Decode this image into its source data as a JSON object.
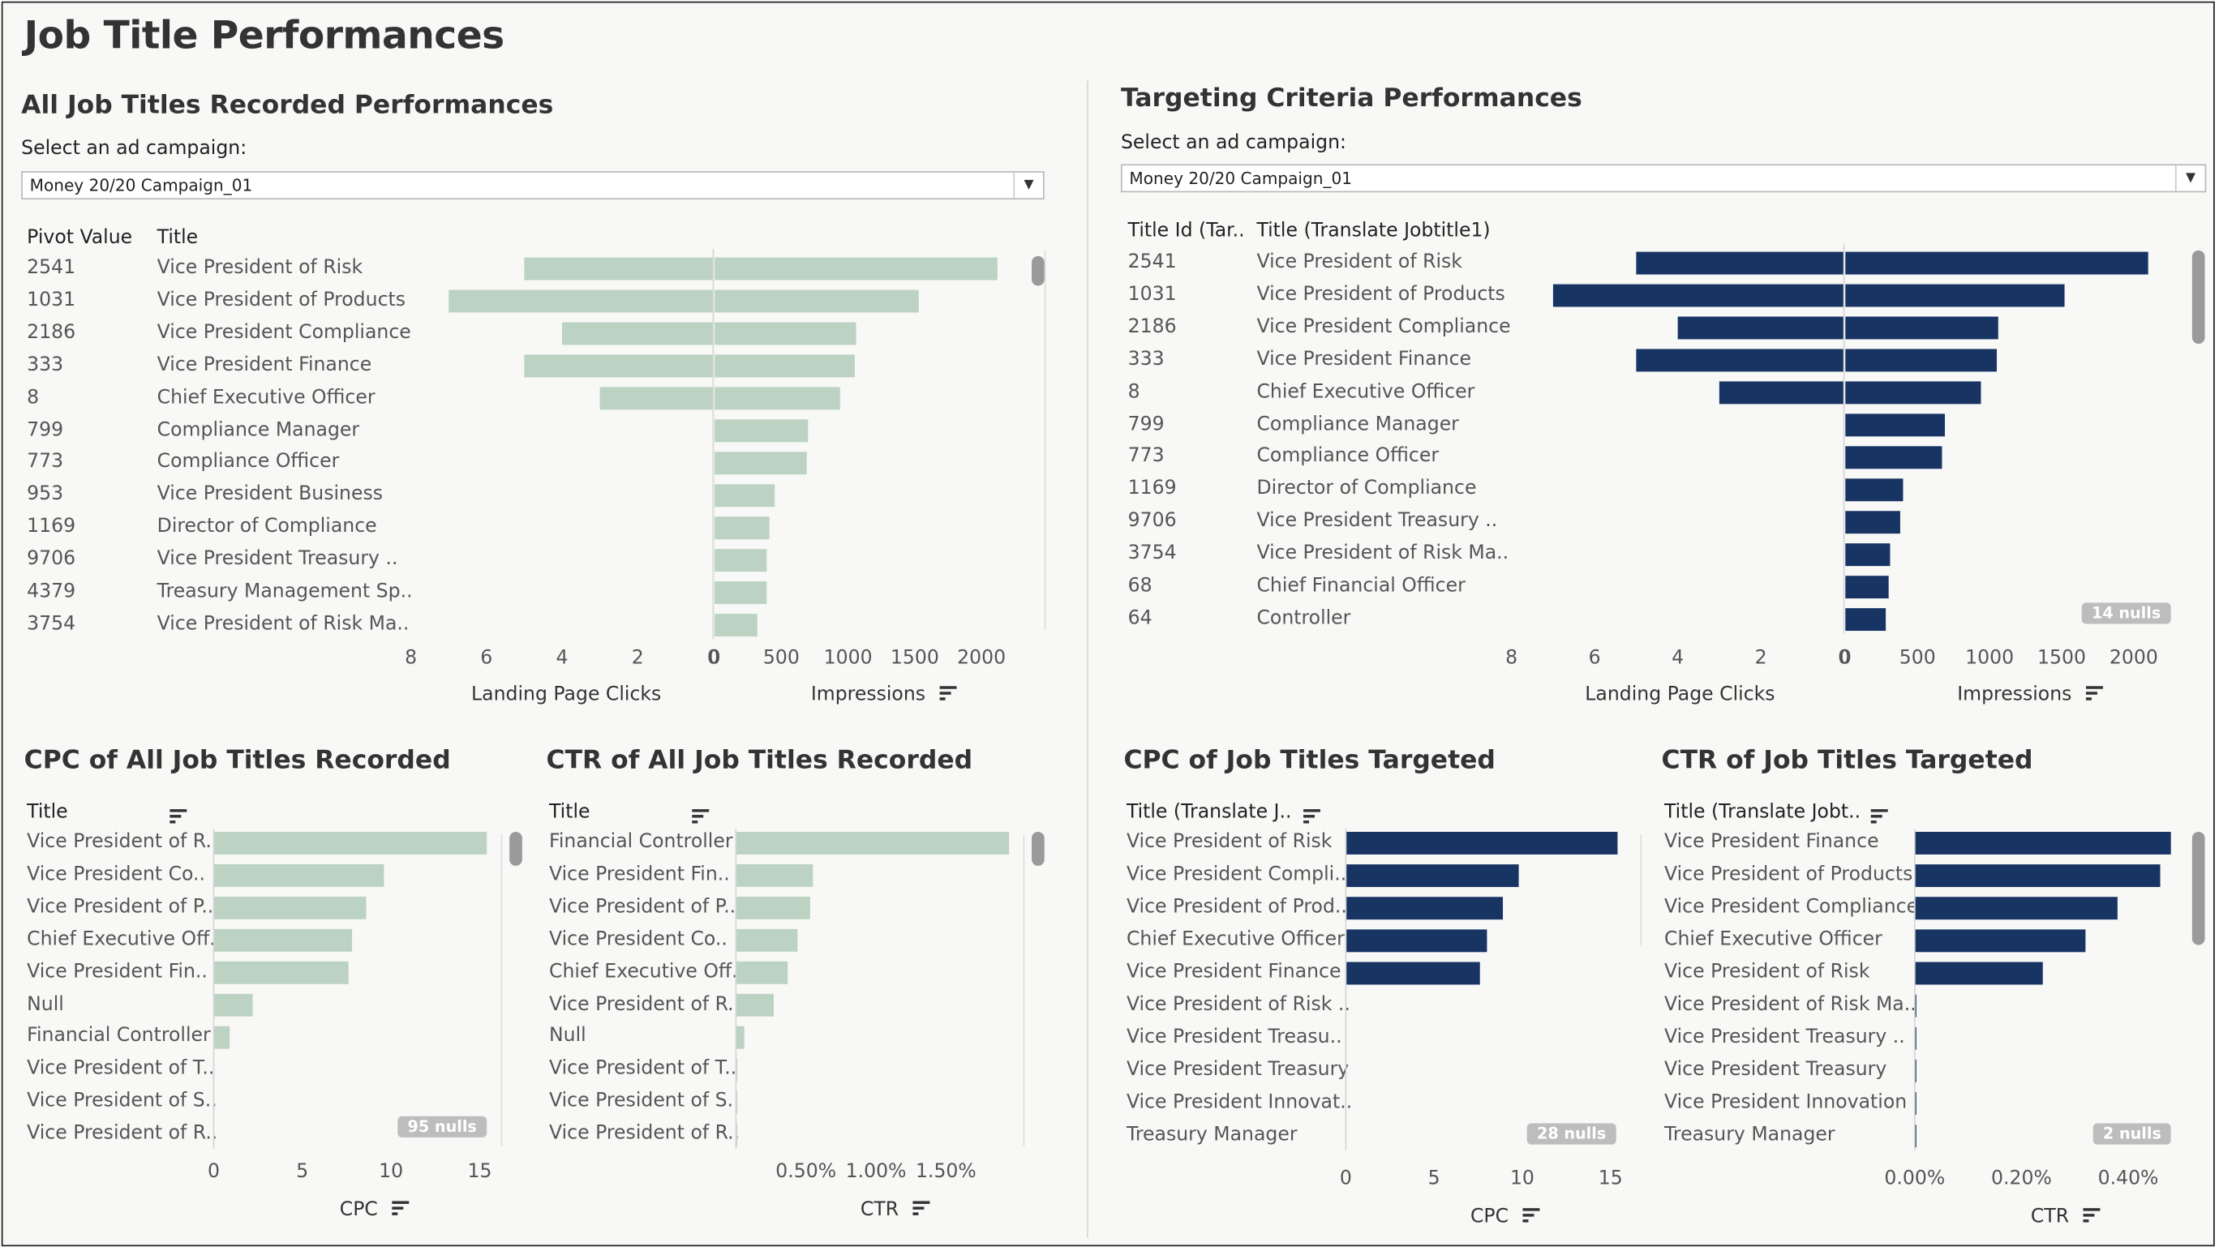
{
  "dashboard_title": "Job Title Performances",
  "colors": {
    "green": "#bcd2c2",
    "navy": "#183463",
    "bg": "#f8f8f7",
    "zero_line": "#d6d6d6"
  },
  "left_panel": {
    "title": "All Job Titles Recorded Performances",
    "select_label": "Select an ad campaign:",
    "select_value": "Money 20/20 Campaign_01",
    "col1": "Pivot Value",
    "col2": "Title"
  },
  "right_panel": {
    "title": "Targeting Criteria Performances",
    "select_label": "Select an ad campaign:",
    "select_value": "Money 20/20 Campaign_01",
    "col1": "Title Id (Tar..",
    "col2": "Title (Translate Jobtitle1)",
    "nulls": "14 nulls"
  },
  "bottom": {
    "cpc_all_title": "CPC of All Job Titles Recorded",
    "ctr_all_title": "CTR of All Job Titles Recorded",
    "cpc_t_title": "CPC of Job Titles Targeted",
    "ctr_t_title": "CTR of Job Titles Targeted",
    "hdr_title": "Title",
    "hdr_translate_cpc": "Title (Translate J..",
    "hdr_translate_ctr": "Title (Translate Jobt..",
    "nulls_cpc_all": "95 nulls",
    "nulls_cpc_t": "28 nulls",
    "nulls_ctr_t": "2 nulls"
  },
  "chart_data": [
    {
      "type": "bar",
      "id": "all_diverging",
      "ids": [
        "2541",
        "1031",
        "2186",
        "333",
        "8",
        "799",
        "773",
        "953",
        "1169",
        "9706",
        "4379",
        "3754"
      ],
      "categories": [
        "Vice President of Risk",
        "Vice President of Products",
        "Vice President Compliance",
        "Vice President Finance",
        "Chief Executive Officer",
        "Compliance Manager",
        "Compliance Officer",
        "Vice President Business",
        "Director of Compliance",
        "Vice President Treasury ..",
        "Treasury Management Sp..",
        "Vice President of Risk Ma.."
      ],
      "series": [
        {
          "name": "Landing Page Clicks",
          "values": [
            5,
            7,
            4,
            5,
            3,
            0,
            0,
            0,
            0,
            0,
            0,
            0
          ]
        },
        {
          "name": "Impressions",
          "values": [
            2120,
            1530,
            1060,
            1050,
            940,
            700,
            690,
            450,
            410,
            390,
            390,
            320
          ]
        }
      ],
      "left_ticks": [
        "8",
        "6",
        "4",
        "2",
        "0"
      ],
      "right_ticks": [
        "0",
        "500",
        "1000",
        "1500",
        "2000"
      ],
      "left_axis_title": "Landing Page Clicks",
      "right_axis_title": "Impressions",
      "left_max": 7.9,
      "right_max": 2090
    },
    {
      "type": "bar",
      "id": "targeted_diverging",
      "ids": [
        "2541",
        "1031",
        "2186",
        "333",
        "8",
        "799",
        "773",
        "1169",
        "9706",
        "3754",
        "68",
        "64"
      ],
      "categories": [
        "Vice President of Risk",
        "Vice President of Products",
        "Vice President Compliance",
        "Vice President Finance",
        "Chief Executive Officer",
        "Compliance Manager",
        "Compliance Officer",
        "Director of Compliance",
        "Vice President Treasury ..",
        "Vice President of Risk Ma..",
        "Chief Financial Officer",
        "Controller"
      ],
      "series": [
        {
          "name": "Landing Page Clicks",
          "values": [
            5,
            7,
            4,
            5,
            3,
            0,
            0,
            0,
            0,
            0,
            0,
            0
          ]
        },
        {
          "name": "Impressions",
          "values": [
            2100,
            1520,
            1060,
            1050,
            940,
            690,
            670,
            400,
            380,
            310,
            300,
            280
          ]
        }
      ],
      "left_ticks": [
        "8",
        "6",
        "4",
        "2",
        "0"
      ],
      "right_ticks": [
        "0",
        "500",
        "1000",
        "1500",
        "2000"
      ],
      "left_axis_title": "Landing Page Clicks",
      "right_axis_title": "Impressions",
      "left_max": 7.9,
      "right_max": 2130
    },
    {
      "type": "bar",
      "id": "cpc_all",
      "categories": [
        "Vice President of R..",
        "Vice President Co..",
        "Vice President of P..",
        "Chief Executive Off..",
        "Vice President Fin..",
        "Null",
        "Financial Controller",
        "Vice President of T..",
        "Vice President of S..",
        "Vice President of R.."
      ],
      "values": [
        15.4,
        9.6,
        8.6,
        7.8,
        7.6,
        2.2,
        0.9,
        0,
        0,
        0
      ],
      "ticks": [
        "0",
        "5",
        "10",
        "15"
      ],
      "tick_values": [
        0,
        5,
        10,
        15
      ],
      "xmax": 15.4,
      "xlabel": "CPC"
    },
    {
      "type": "bar",
      "id": "ctr_all",
      "categories": [
        "Financial Controller",
        "Vice President Fin..",
        "Vice President of P..",
        "Vice President Co..",
        "Chief Executive Off..",
        "Vice President of R..",
        "Null",
        "Vice President of T..",
        "Vice President of S..",
        "Vice President of R.."
      ],
      "values": [
        1.95,
        0.55,
        0.53,
        0.44,
        0.37,
        0.27,
        0.06,
        0.01,
        0.01,
        0.01
      ],
      "ticks": [
        "0.50%",
        "1.00%",
        "1.50%"
      ],
      "tick_values": [
        0.5,
        1.0,
        1.5
      ],
      "xmax": 1.95,
      "xlabel": "CTR"
    },
    {
      "type": "bar",
      "id": "cpc_targeted",
      "categories": [
        "Vice President of Risk",
        "Vice President Compli..",
        "Vice President of Prod..",
        "Chief Executive Officer",
        "Vice President Finance",
        "Vice President of Risk ..",
        "Vice President Treasu..",
        "Vice President Treasury",
        "Vice President Innovat..",
        "Treasury Manager"
      ],
      "values": [
        15.4,
        9.8,
        8.9,
        8.0,
        7.6,
        0,
        0,
        0,
        0,
        0
      ],
      "ticks": [
        "0",
        "5",
        "10",
        "15"
      ],
      "tick_values": [
        0,
        5,
        10,
        15
      ],
      "xmax": 15.4,
      "xlabel": "CPC"
    },
    {
      "type": "bar",
      "id": "ctr_targeted",
      "categories": [
        "Vice President Finance",
        "Vice President of Products",
        "Vice President Compliance",
        "Chief Executive Officer",
        "Vice President of Risk",
        "Vice President of Risk Ma..",
        "Vice President Treasury ..",
        "Vice President Treasury",
        "Vice President Innovation",
        "Treasury Manager"
      ],
      "values": [
        0.48,
        0.46,
        0.38,
        0.32,
        0.24,
        0.003,
        0.003,
        0.003,
        0.003,
        0.003
      ],
      "ticks": [
        "0.00%",
        "0.20%",
        "0.40%"
      ],
      "tick_values": [
        0.0,
        0.2,
        0.4
      ],
      "xmax": 0.48,
      "xlabel": "CTR"
    }
  ]
}
